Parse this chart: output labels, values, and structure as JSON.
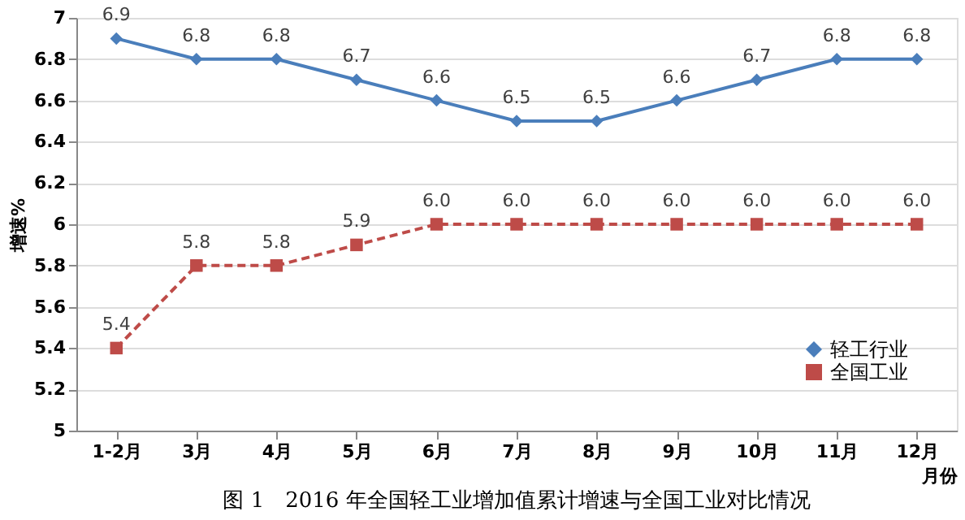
{
  "chart_data": {
    "type": "line",
    "ylabel": "增速%",
    "xlabel": "月份",
    "categories": [
      "1-2月",
      "3月",
      "4月",
      "5月",
      "6月",
      "7月",
      "8月",
      "9月",
      "10月",
      "11月",
      "12月"
    ],
    "series": [
      {
        "name": "轻工行业",
        "color": "#4a7ebb",
        "marker": "diamond",
        "line_style": "solid",
        "values": [
          6.9,
          6.8,
          6.8,
          6.7,
          6.6,
          6.5,
          6.5,
          6.6,
          6.7,
          6.8,
          6.8
        ],
        "value_labels": [
          "6.9",
          "6.8",
          "6.8",
          "6.7",
          "6.6",
          "6.5",
          "6.5",
          "6.6",
          "6.7",
          "6.8",
          "6.8"
        ]
      },
      {
        "name": "全国工业",
        "color": "#be4b48",
        "marker": "square",
        "line_style": "dashed",
        "values": [
          5.4,
          5.8,
          5.8,
          5.9,
          6.0,
          6.0,
          6.0,
          6.0,
          6.0,
          6.0,
          6.0
        ],
        "value_labels": [
          "5.4",
          "5.8",
          "5.8",
          "5.9",
          "6.0",
          "6.0",
          "6.0",
          "6.0",
          "6.0",
          "6.0",
          "6.0"
        ]
      }
    ],
    "ylim": [
      5,
      7
    ],
    "yticks": [
      5,
      5.2,
      5.4,
      5.6,
      5.8,
      6,
      6.2,
      6.4,
      6.6,
      6.8,
      7
    ],
    "grid": "y",
    "legend": "bottom right",
    "data_labels": true,
    "annotations": [
      "图 1　2016 年全国轻工业增加值累计增速与全国工业对比情况"
    ]
  }
}
